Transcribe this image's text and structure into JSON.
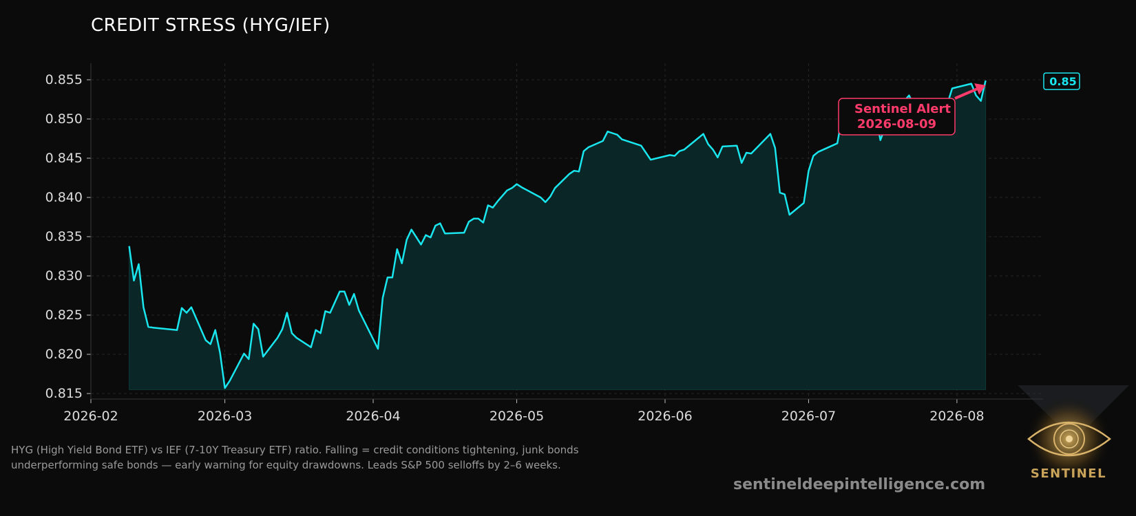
{
  "chart_data": {
    "type": "area",
    "title": "CREDIT STRESS (HYG/IEF)",
    "xlabel": "",
    "ylabel": "",
    "xlim": [
      "2026-02-01",
      "2026-08-19"
    ],
    "ylim": [
      0.8143,
      0.8571
    ],
    "y_ticks": [
      0.815,
      0.82,
      0.825,
      0.83,
      0.835,
      0.84,
      0.845,
      0.85,
      0.855
    ],
    "y_tick_labels": [
      "0.815",
      "0.820",
      "0.825",
      "0.830",
      "0.835",
      "0.840",
      "0.845",
      "0.850",
      "0.855"
    ],
    "x_ticks": [
      "2026-02-01",
      "2026-03-01",
      "2026-04-01",
      "2026-05-01",
      "2026-06-01",
      "2026-07-01",
      "2026-08-01"
    ],
    "x_tick_labels": [
      "2026-02",
      "2026-03",
      "2026-04",
      "2026-05",
      "2026-06",
      "2026-07",
      "2026-08"
    ],
    "grid": true,
    "fill_baseline": 0.8155,
    "line_color": "#19e6ee",
    "fill_color": "#0a2626",
    "series": [
      {
        "x": [
          "2026-02-09",
          "2026-02-10",
          "2026-02-11",
          "2026-02-12",
          "2026-02-13",
          "2026-02-14",
          "2026-02-19",
          "2026-02-20",
          "2026-02-21",
          "2026-02-22",
          "2026-02-25",
          "2026-02-26",
          "2026-02-27",
          "2026-02-28",
          "2026-03-01",
          "2026-03-02",
          "2026-03-05",
          "2026-03-06",
          "2026-03-07",
          "2026-03-08",
          "2026-03-09",
          "2026-03-12",
          "2026-03-13",
          "2026-03-14",
          "2026-03-15",
          "2026-03-16",
          "2026-03-19",
          "2026-03-20",
          "2026-03-21",
          "2026-03-22",
          "2026-03-23",
          "2026-03-25",
          "2026-03-26",
          "2026-03-27",
          "2026-03-28",
          "2026-03-29",
          "2026-04-02",
          "2026-04-03",
          "2026-04-04",
          "2026-04-05",
          "2026-04-06",
          "2026-04-07",
          "2026-04-08",
          "2026-04-09",
          "2026-04-11",
          "2026-04-12",
          "2026-04-13",
          "2026-04-14",
          "2026-04-15",
          "2026-04-16",
          "2026-04-20",
          "2026-04-21",
          "2026-04-22",
          "2026-04-23",
          "2026-04-24",
          "2026-04-25",
          "2026-04-26",
          "2026-04-27",
          "2026-04-29",
          "2026-04-30",
          "2026-05-01",
          "2026-05-02",
          "2026-05-06",
          "2026-05-07",
          "2026-05-08",
          "2026-05-09",
          "2026-05-12",
          "2026-05-13",
          "2026-05-14",
          "2026-05-15",
          "2026-05-16",
          "2026-05-19",
          "2026-05-20",
          "2026-05-21",
          "2026-05-22",
          "2026-05-23",
          "2026-05-27",
          "2026-05-28",
          "2026-05-29",
          "2026-06-02",
          "2026-06-03",
          "2026-06-04",
          "2026-06-05",
          "2026-06-09",
          "2026-06-10",
          "2026-06-11",
          "2026-06-12",
          "2026-06-13",
          "2026-06-16",
          "2026-06-17",
          "2026-06-18",
          "2026-06-19",
          "2026-06-23",
          "2026-06-24",
          "2026-06-25",
          "2026-06-26",
          "2026-06-27",
          "2026-06-30",
          "2026-07-01",
          "2026-07-02",
          "2026-07-03",
          "2026-07-07",
          "2026-07-08",
          "2026-07-09",
          "2026-07-10",
          "2026-07-14",
          "2026-07-15",
          "2026-07-16",
          "2026-07-17",
          "2026-07-21",
          "2026-07-22",
          "2026-07-23",
          "2026-07-24",
          "2026-07-28",
          "2026-07-29",
          "2026-07-30",
          "2026-07-31",
          "2026-08-04",
          "2026-08-05",
          "2026-08-06",
          "2026-08-07"
        ],
        "values": [
          0.8338,
          0.8294,
          0.8315,
          0.826,
          0.8235,
          0.8234,
          0.8231,
          0.8259,
          0.8253,
          0.826,
          0.8218,
          0.8213,
          0.8231,
          0.8202,
          0.8157,
          0.8166,
          0.8201,
          0.8194,
          0.8239,
          0.8232,
          0.8197,
          0.8221,
          0.8232,
          0.8253,
          0.8227,
          0.8221,
          0.8209,
          0.8231,
          0.8227,
          0.8255,
          0.8253,
          0.828,
          0.828,
          0.8263,
          0.8277,
          0.8256,
          0.8207,
          0.8272,
          0.8298,
          0.8298,
          0.8334,
          0.8316,
          0.8346,
          0.8359,
          0.834,
          0.8352,
          0.8349,
          0.8364,
          0.8367,
          0.8354,
          0.8355,
          0.8369,
          0.8373,
          0.8373,
          0.8368,
          0.839,
          0.8387,
          0.8395,
          0.8409,
          0.8412,
          0.8417,
          0.8413,
          0.84,
          0.8394,
          0.8401,
          0.8412,
          0.843,
          0.8434,
          0.8433,
          0.8459,
          0.8464,
          0.8472,
          0.8484,
          0.8482,
          0.848,
          0.8474,
          0.8466,
          0.8457,
          0.8448,
          0.8454,
          0.8453,
          0.8459,
          0.8461,
          0.8481,
          0.8468,
          0.8461,
          0.8451,
          0.8465,
          0.8466,
          0.8444,
          0.8457,
          0.8456,
          0.8481,
          0.8463,
          0.8406,
          0.8404,
          0.8378,
          0.8393,
          0.8434,
          0.8453,
          0.8458,
          0.8469,
          0.8503,
          0.851,
          0.85,
          0.852,
          0.8505,
          0.8473,
          0.849,
          0.8523,
          0.853,
          0.8517,
          0.8508,
          0.8481,
          0.8497,
          0.8519,
          0.8539,
          0.8545,
          0.853,
          0.8523,
          0.8549
        ]
      }
    ],
    "last_value_label": "0.85",
    "annotation": {
      "text_line1": "Sentinel Alert",
      "text_line2": "2026-08-09",
      "color": "#ff3b6b",
      "arrow_target_x": "2026-08-07",
      "arrow_target_y": 0.8543
    }
  },
  "caption": "HYG (High Yield Bond ETF) vs IEF (7-10Y Treasury ETF) ratio. Falling = credit conditions tightening, junk bonds underperforming safe bonds — early warning for equity drawdowns. Leads S&P 500 selloffs by 2–6 weeks.",
  "website": "sentineldeepintelligence.com",
  "logo_text": "SENTINEL",
  "colors": {
    "background": "#0b0b0b",
    "accent": "#19e6ee",
    "alert": "#ff3b6b",
    "gold": "#c9a35a"
  }
}
